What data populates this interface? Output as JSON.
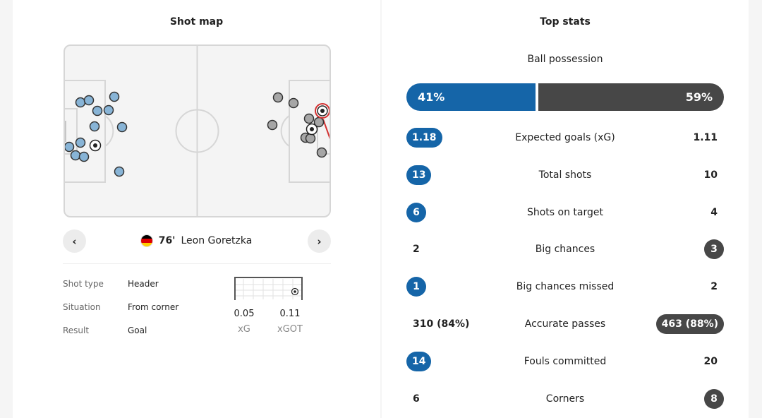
{
  "shot_map": {
    "title": "Shot map",
    "current_shot": {
      "minute": "76'",
      "player": "Leon Goretzka"
    },
    "details": [
      {
        "label": "Shot type",
        "value": "Header"
      },
      {
        "label": "Situation",
        "value": "From corner"
      },
      {
        "label": "Result",
        "value": "Goal"
      }
    ],
    "xg": {
      "value": "0.05",
      "label": "xG"
    },
    "xgot": {
      "value": "0.11",
      "label": "xGOT"
    },
    "colors": {
      "home": "#88b4d6",
      "away": "#a6a6a6",
      "selected": "#d32f2f"
    },
    "icons": {
      "prev": "chevron-left-icon",
      "next": "chevron-right-icon",
      "goal": "football-icon"
    }
  },
  "top_stats": {
    "title": "Top stats",
    "possession": {
      "label": "Ball possession",
      "home": "41%",
      "away": "59%",
      "home_value": 41,
      "away_value": 59
    },
    "rows": [
      {
        "name": "Expected goals (xG)",
        "home": "1.18",
        "away": "1.11",
        "highlight": "home"
      },
      {
        "name": "Total shots",
        "home": "13",
        "away": "10",
        "highlight": "home"
      },
      {
        "name": "Shots on target",
        "home": "6",
        "away": "4",
        "highlight": "home"
      },
      {
        "name": "Big chances",
        "home": "2",
        "away": "3",
        "highlight": "away"
      },
      {
        "name": "Big chances missed",
        "home": "1",
        "away": "2",
        "highlight": "home"
      },
      {
        "name": "Accurate passes",
        "home": "310 (84%)",
        "away": "463 (88%)",
        "highlight": "away"
      },
      {
        "name": "Fouls committed",
        "home": "14",
        "away": "20",
        "highlight": "home"
      },
      {
        "name": "Corners",
        "home": "6",
        "away": "8",
        "highlight": "away"
      }
    ],
    "colors": {
      "home": "#1565a8",
      "away": "#474747"
    }
  }
}
